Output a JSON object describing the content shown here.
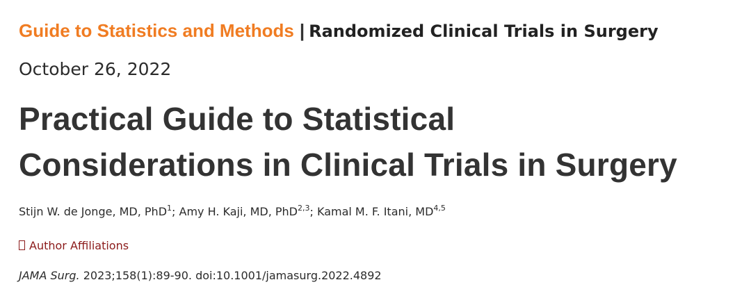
{
  "header": {
    "category": "Guide to Statistics and Methods",
    "separator": "|",
    "topic": "Randomized Clinical Trials in Surgery"
  },
  "date": "October 26, 2022",
  "title": {
    "line1": "Practical Guide to Statistical",
    "line2": "Considerations in Clinical Trials in Surgery"
  },
  "authors": [
    {
      "name": "Stijn W. de Jonge, MD, PhD",
      "sup": "1",
      "after": "; "
    },
    {
      "name": "Amy H. Kaji, MD, PhD",
      "sup": "2,3",
      "after": "; "
    },
    {
      "name": "Kamal M. F. Itani, MD",
      "sup": "4,5",
      "after": ""
    }
  ],
  "affiliations_link": {
    "label": "Author Affiliations",
    "icon": "square-box-icon"
  },
  "citation": {
    "journal": "JAMA Surg.",
    "details": " 2023;158(1):89-90. doi:10.1001/jamasurg.2022.4892"
  },
  "colors": {
    "category": "#f07c22",
    "link": "#8b1a1a",
    "title": "#333333"
  }
}
